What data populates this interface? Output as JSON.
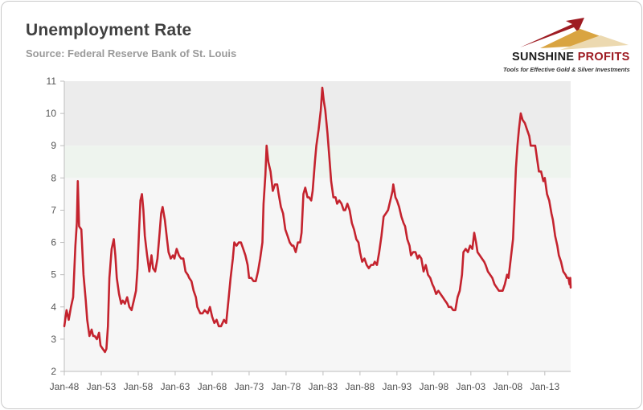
{
  "header": {
    "title": "Unemployment Rate",
    "subtitle": "Source: Federal Reserve Bank of St. Louis"
  },
  "logo": {
    "name_part1": "SUNSHINE",
    "name_part2": "PROFITS",
    "tagline": "Tools for Effective Gold & Silver Investments",
    "colors": {
      "red": "#9e1b22",
      "gold": "#d9a441",
      "light_gold": "#ecd9b0"
    }
  },
  "chart_data": {
    "type": "line",
    "title": "Unemployment Rate",
    "subtitle": "Source: Federal Reserve Bank of St. Louis",
    "xlabel": "",
    "ylabel": "",
    "ylim": [
      2,
      11
    ],
    "xlim": [
      1948.0,
      2016.5
    ],
    "yticks": [
      2,
      3,
      4,
      5,
      6,
      7,
      8,
      9,
      10,
      11
    ],
    "xticks": [
      {
        "label": "Jan-48",
        "value": 1948
      },
      {
        "label": "Jan-53",
        "value": 1953
      },
      {
        "label": "Jan-58",
        "value": 1958
      },
      {
        "label": "Jan-63",
        "value": 1963
      },
      {
        "label": "Jan-68",
        "value": 1968
      },
      {
        "label": "Jan-73",
        "value": 1973
      },
      {
        "label": "Jan-78",
        "value": 1978
      },
      {
        "label": "Jan-83",
        "value": 1983
      },
      {
        "label": "Jan-88",
        "value": 1988
      },
      {
        "label": "Jan-93",
        "value": 1993
      },
      {
        "label": "Jan-98",
        "value": 1998
      },
      {
        "label": "Jan-03",
        "value": 2003
      },
      {
        "label": "Jan-08",
        "value": 2008
      },
      {
        "label": "Jan-13",
        "value": 2013
      }
    ],
    "grid": false,
    "legend": "none",
    "bands": [
      {
        "from": 2,
        "to": 8,
        "color": "#f6f6f6"
      },
      {
        "from": 8,
        "to": 9,
        "color": "#eef4ee"
      },
      {
        "from": 9,
        "to": 11,
        "color": "#ececec"
      }
    ],
    "series": [
      {
        "color": "#c4232e",
        "points": [
          [
            1948.0,
            3.4
          ],
          [
            1948.3,
            3.9
          ],
          [
            1948.6,
            3.6
          ],
          [
            1948.9,
            4.0
          ],
          [
            1949.2,
            4.3
          ],
          [
            1949.5,
            5.9
          ],
          [
            1949.7,
            6.6
          ],
          [
            1949.83,
            7.9
          ],
          [
            1950.0,
            6.5
          ],
          [
            1950.3,
            6.4
          ],
          [
            1950.6,
            5.0
          ],
          [
            1950.9,
            4.2
          ],
          [
            1951.1,
            3.6
          ],
          [
            1951.4,
            3.1
          ],
          [
            1951.7,
            3.3
          ],
          [
            1951.9,
            3.1
          ],
          [
            1952.1,
            3.1
          ],
          [
            1952.4,
            3.0
          ],
          [
            1952.7,
            3.2
          ],
          [
            1952.9,
            2.8
          ],
          [
            1953.2,
            2.7
          ],
          [
            1953.5,
            2.6
          ],
          [
            1953.7,
            2.7
          ],
          [
            1953.9,
            3.4
          ],
          [
            1954.1,
            4.9
          ],
          [
            1954.4,
            5.8
          ],
          [
            1954.7,
            6.1
          ],
          [
            1954.9,
            5.6
          ],
          [
            1955.1,
            4.9
          ],
          [
            1955.4,
            4.4
          ],
          [
            1955.7,
            4.1
          ],
          [
            1955.9,
            4.2
          ],
          [
            1956.2,
            4.1
          ],
          [
            1956.5,
            4.3
          ],
          [
            1956.8,
            4.0
          ],
          [
            1957.1,
            3.9
          ],
          [
            1957.4,
            4.2
          ],
          [
            1957.7,
            4.5
          ],
          [
            1957.9,
            5.2
          ],
          [
            1958.1,
            6.3
          ],
          [
            1958.3,
            7.3
          ],
          [
            1958.5,
            7.5
          ],
          [
            1958.7,
            7.0
          ],
          [
            1958.9,
            6.2
          ],
          [
            1959.2,
            5.6
          ],
          [
            1959.5,
            5.1
          ],
          [
            1959.8,
            5.6
          ],
          [
            1960.0,
            5.2
          ],
          [
            1960.3,
            5.1
          ],
          [
            1960.6,
            5.5
          ],
          [
            1960.9,
            6.3
          ],
          [
            1961.1,
            6.9
          ],
          [
            1961.3,
            7.1
          ],
          [
            1961.6,
            6.7
          ],
          [
            1961.9,
            6.1
          ],
          [
            1962.1,
            5.7
          ],
          [
            1962.4,
            5.5
          ],
          [
            1962.7,
            5.6
          ],
          [
            1962.9,
            5.5
          ],
          [
            1963.2,
            5.8
          ],
          [
            1963.5,
            5.6
          ],
          [
            1963.8,
            5.5
          ],
          [
            1964.1,
            5.5
          ],
          [
            1964.4,
            5.1
          ],
          [
            1964.7,
            5.0
          ],
          [
            1964.9,
            4.9
          ],
          [
            1965.2,
            4.8
          ],
          [
            1965.5,
            4.5
          ],
          [
            1965.8,
            4.3
          ],
          [
            1966.0,
            4.0
          ],
          [
            1966.4,
            3.8
          ],
          [
            1966.7,
            3.8
          ],
          [
            1967.0,
            3.9
          ],
          [
            1967.4,
            3.8
          ],
          [
            1967.7,
            4.0
          ],
          [
            1968.0,
            3.7
          ],
          [
            1968.3,
            3.5
          ],
          [
            1968.6,
            3.6
          ],
          [
            1968.9,
            3.4
          ],
          [
            1969.2,
            3.4
          ],
          [
            1969.6,
            3.6
          ],
          [
            1969.9,
            3.5
          ],
          [
            1970.2,
            4.2
          ],
          [
            1970.5,
            4.9
          ],
          [
            1970.8,
            5.5
          ],
          [
            1971.0,
            6.0
          ],
          [
            1971.3,
            5.9
          ],
          [
            1971.6,
            6.0
          ],
          [
            1971.9,
            6.0
          ],
          [
            1972.2,
            5.8
          ],
          [
            1972.5,
            5.6
          ],
          [
            1972.8,
            5.3
          ],
          [
            1973.0,
            4.9
          ],
          [
            1973.3,
            4.9
          ],
          [
            1973.6,
            4.8
          ],
          [
            1973.9,
            4.8
          ],
          [
            1974.2,
            5.1
          ],
          [
            1974.5,
            5.5
          ],
          [
            1974.8,
            6.0
          ],
          [
            1974.95,
            7.2
          ],
          [
            1975.2,
            8.1
          ],
          [
            1975.37,
            9.0
          ],
          [
            1975.6,
            8.5
          ],
          [
            1975.9,
            8.2
          ],
          [
            1976.2,
            7.6
          ],
          [
            1976.5,
            7.8
          ],
          [
            1976.8,
            7.8
          ],
          [
            1977.0,
            7.5
          ],
          [
            1977.3,
            7.1
          ],
          [
            1977.6,
            6.9
          ],
          [
            1977.9,
            6.4
          ],
          [
            1978.2,
            6.2
          ],
          [
            1978.5,
            6.0
          ],
          [
            1978.8,
            5.9
          ],
          [
            1979.0,
            5.9
          ],
          [
            1979.3,
            5.7
          ],
          [
            1979.6,
            6.0
          ],
          [
            1979.9,
            6.0
          ],
          [
            1980.1,
            6.3
          ],
          [
            1980.35,
            7.5
          ],
          [
            1980.6,
            7.7
          ],
          [
            1980.9,
            7.4
          ],
          [
            1981.1,
            7.4
          ],
          [
            1981.4,
            7.3
          ],
          [
            1981.6,
            7.6
          ],
          [
            1981.9,
            8.5
          ],
          [
            1982.1,
            9.0
          ],
          [
            1982.4,
            9.5
          ],
          [
            1982.7,
            10.1
          ],
          [
            1982.9,
            10.8
          ],
          [
            1983.1,
            10.4
          ],
          [
            1983.3,
            10.1
          ],
          [
            1983.6,
            9.4
          ],
          [
            1983.9,
            8.5
          ],
          [
            1984.1,
            7.9
          ],
          [
            1984.4,
            7.4
          ],
          [
            1984.7,
            7.4
          ],
          [
            1984.9,
            7.2
          ],
          [
            1985.2,
            7.3
          ],
          [
            1985.5,
            7.2
          ],
          [
            1985.8,
            7.0
          ],
          [
            1986.0,
            7.0
          ],
          [
            1986.3,
            7.2
          ],
          [
            1986.6,
            7.0
          ],
          [
            1986.9,
            6.6
          ],
          [
            1987.2,
            6.4
          ],
          [
            1987.5,
            6.1
          ],
          [
            1987.8,
            6.0
          ],
          [
            1988.0,
            5.7
          ],
          [
            1988.3,
            5.4
          ],
          [
            1988.6,
            5.5
          ],
          [
            1988.9,
            5.3
          ],
          [
            1989.2,
            5.2
          ],
          [
            1989.5,
            5.3
          ],
          [
            1989.8,
            5.3
          ],
          [
            1990.0,
            5.4
          ],
          [
            1990.3,
            5.3
          ],
          [
            1990.6,
            5.7
          ],
          [
            1990.9,
            6.2
          ],
          [
            1991.2,
            6.8
          ],
          [
            1991.5,
            6.9
          ],
          [
            1991.8,
            7.0
          ],
          [
            1992.1,
            7.3
          ],
          [
            1992.4,
            7.6
          ],
          [
            1992.5,
            7.8
          ],
          [
            1992.8,
            7.4
          ],
          [
            1993.0,
            7.3
          ],
          [
            1993.3,
            7.1
          ],
          [
            1993.6,
            6.8
          ],
          [
            1993.9,
            6.6
          ],
          [
            1994.1,
            6.5
          ],
          [
            1994.4,
            6.1
          ],
          [
            1994.7,
            5.9
          ],
          [
            1994.9,
            5.6
          ],
          [
            1995.2,
            5.7
          ],
          [
            1995.5,
            5.7
          ],
          [
            1995.8,
            5.5
          ],
          [
            1996.0,
            5.6
          ],
          [
            1996.3,
            5.5
          ],
          [
            1996.6,
            5.1
          ],
          [
            1996.9,
            5.3
          ],
          [
            1997.2,
            5.0
          ],
          [
            1997.5,
            4.9
          ],
          [
            1997.8,
            4.7
          ],
          [
            1998.0,
            4.6
          ],
          [
            1998.3,
            4.4
          ],
          [
            1998.6,
            4.5
          ],
          [
            1998.9,
            4.4
          ],
          [
            1999.2,
            4.3
          ],
          [
            1999.5,
            4.2
          ],
          [
            1999.8,
            4.1
          ],
          [
            2000.0,
            4.0
          ],
          [
            2000.3,
            4.0
          ],
          [
            2000.6,
            3.9
          ],
          [
            2000.9,
            3.9
          ],
          [
            2001.2,
            4.3
          ],
          [
            2001.5,
            4.5
          ],
          [
            2001.8,
            5.0
          ],
          [
            2002.0,
            5.7
          ],
          [
            2002.3,
            5.8
          ],
          [
            2002.6,
            5.7
          ],
          [
            2002.9,
            5.9
          ],
          [
            2003.2,
            5.8
          ],
          [
            2003.45,
            6.3
          ],
          [
            2003.7,
            6.0
          ],
          [
            2003.9,
            5.7
          ],
          [
            2004.2,
            5.6
          ],
          [
            2004.5,
            5.5
          ],
          [
            2004.8,
            5.4
          ],
          [
            2005.0,
            5.3
          ],
          [
            2005.3,
            5.1
          ],
          [
            2005.6,
            5.0
          ],
          [
            2005.9,
            4.9
          ],
          [
            2006.2,
            4.7
          ],
          [
            2006.5,
            4.6
          ],
          [
            2006.8,
            4.5
          ],
          [
            2007.0,
            4.5
          ],
          [
            2007.3,
            4.5
          ],
          [
            2007.6,
            4.7
          ],
          [
            2007.9,
            5.0
          ],
          [
            2008.1,
            4.9
          ],
          [
            2008.4,
            5.5
          ],
          [
            2008.7,
            6.1
          ],
          [
            2008.9,
            7.2
          ],
          [
            2009.1,
            8.3
          ],
          [
            2009.3,
            9.0
          ],
          [
            2009.5,
            9.5
          ],
          [
            2009.75,
            10.0
          ],
          [
            2010.0,
            9.8
          ],
          [
            2010.3,
            9.7
          ],
          [
            2010.6,
            9.5
          ],
          [
            2010.9,
            9.3
          ],
          [
            2011.1,
            9.0
          ],
          [
            2011.4,
            9.0
          ],
          [
            2011.7,
            9.0
          ],
          [
            2011.95,
            8.6
          ],
          [
            2012.2,
            8.2
          ],
          [
            2012.5,
            8.2
          ],
          [
            2012.8,
            7.9
          ],
          [
            2013.0,
            8.0
          ],
          [
            2013.3,
            7.5
          ],
          [
            2013.6,
            7.3
          ],
          [
            2013.9,
            6.9
          ],
          [
            2014.1,
            6.7
          ],
          [
            2014.4,
            6.2
          ],
          [
            2014.7,
            5.9
          ],
          [
            2014.9,
            5.6
          ],
          [
            2015.2,
            5.4
          ],
          [
            2015.5,
            5.1
          ],
          [
            2015.8,
            5.0
          ],
          [
            2016.0,
            4.9
          ],
          [
            2016.2,
            4.9
          ],
          [
            2016.35,
            4.7
          ],
          [
            2016.45,
            4.9
          ],
          [
            2016.5,
            4.6
          ]
        ]
      }
    ]
  }
}
